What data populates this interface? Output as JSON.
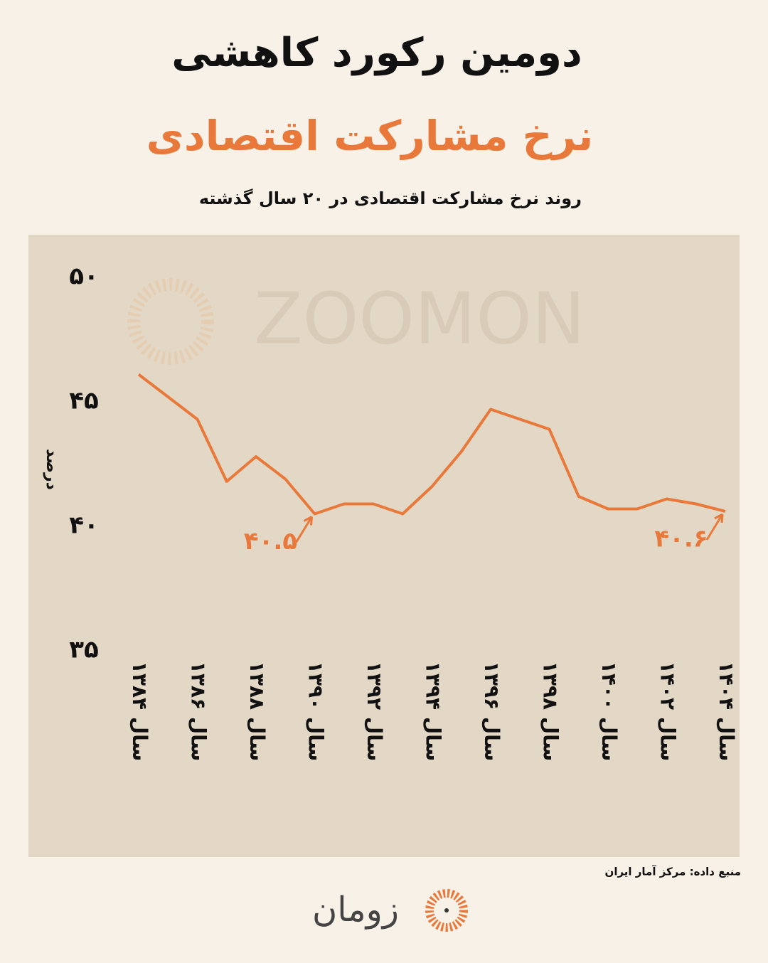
{
  "title": "دومین رکورد کاهشی",
  "subtitle": "نرخ مشارکت اقتصادی",
  "description": "روند نرخ مشارکت اقتصادی در ۲۰ سال گذشته",
  "source": "منبع داده: مرکز آمار ایران",
  "watermark": "ZOOMON",
  "logo": "زومان",
  "chart_data": {
    "type": "line",
    "y_label": "درصد",
    "x": [
      1384,
      1385,
      1386,
      1387,
      1388,
      1389,
      1390,
      1391,
      1392,
      1393,
      1394,
      1395,
      1396,
      1397,
      1398,
      1399,
      1400,
      1401,
      1402,
      1403,
      1404
    ],
    "values": [
      46.1,
      45.2,
      44.3,
      41.8,
      42.8,
      41.9,
      40.5,
      40.9,
      40.9,
      40.5,
      41.6,
      43.0,
      44.7,
      44.3,
      43.9,
      41.2,
      40.7,
      40.7,
      41.1,
      40.9,
      40.6
    ],
    "value_labels": [
      null,
      null,
      null,
      null,
      null,
      null,
      "۴۰.۵",
      null,
      null,
      null,
      null,
      null,
      null,
      null,
      null,
      null,
      null,
      null,
      null,
      null,
      "۴۰.۶"
    ],
    "color": "#e8793a",
    "xlim": [
      1384,
      1404
    ],
    "xticks": [
      {
        "value": 1384,
        "label": "سال ۱۳۸۴"
      },
      {
        "value": 1386,
        "label": "سال ۱۳۸۶"
      },
      {
        "value": 1388,
        "label": "سال ۱۳۸۸"
      },
      {
        "value": 1390,
        "label": "سال ۱۳۹۰"
      },
      {
        "value": 1392,
        "label": "سال ۱۳۹۲"
      },
      {
        "value": 1394,
        "label": "سال ۱۳۹۴"
      },
      {
        "value": 1396,
        "label": "سال ۱۳۹۶"
      },
      {
        "value": 1398,
        "label": "سال ۱۳۹۸"
      },
      {
        "value": 1400,
        "label": "سال ۱۴۰۰"
      },
      {
        "value": 1402,
        "label": "سال ۱۴۰۲"
      },
      {
        "value": 1404,
        "label": "سال ۱۴۰۴"
      }
    ],
    "ylim": [
      35,
      50
    ],
    "yticks": [
      {
        "value": 35,
        "label": "۳۵"
      },
      {
        "value": 40,
        "label": "۴۰"
      },
      {
        "value": 45,
        "label": "۴۵"
      },
      {
        "value": 50,
        "label": "۵۰"
      }
    ],
    "grid": false
  }
}
